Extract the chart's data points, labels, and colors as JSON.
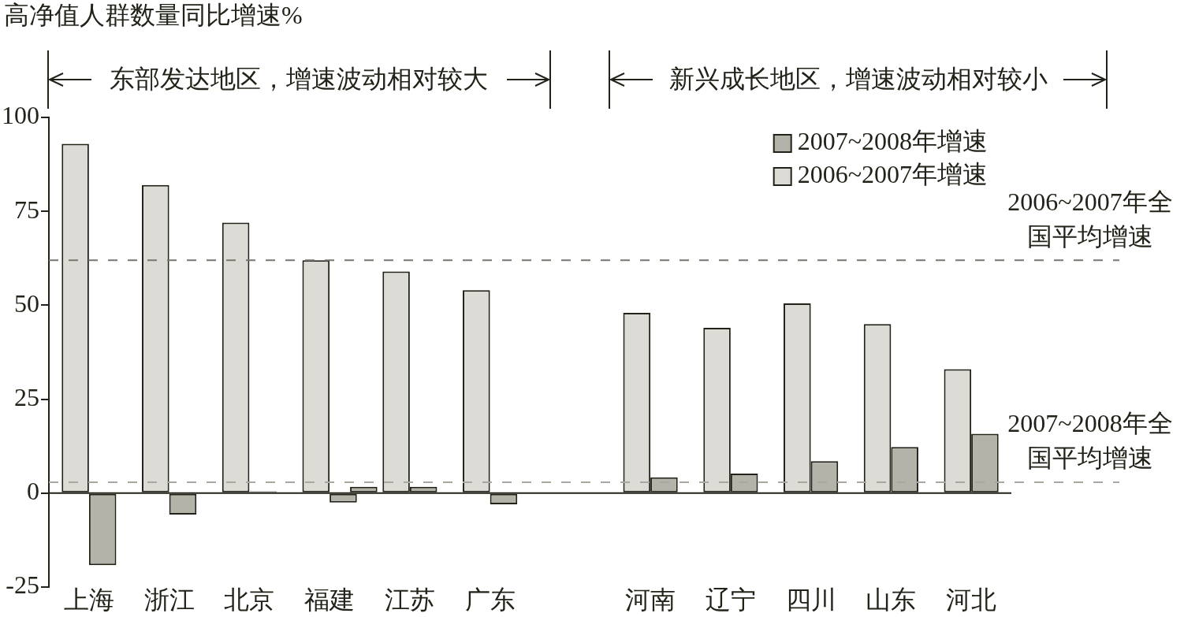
{
  "chart_data": {
    "type": "bar",
    "ylabel": "高净值人群数量同比增速%",
    "categories": [
      "上海",
      "浙江",
      "北京",
      "福建",
      "江苏",
      "广东",
      null,
      "河南",
      "辽宁",
      "四川",
      "山东",
      "河北"
    ],
    "series": [
      {
        "name": "2006~2007年增速",
        "color": "#dcdbd6",
        "values": [
          93,
          82,
          72,
          62,
          59,
          54,
          null,
          48,
          44,
          50.5,
          45,
          33
        ]
      },
      {
        "name": "2007~2008年增速",
        "color": "#b3b3a9",
        "values": [
          -19.2,
          -5.7,
          0.5,
          -2.5,
          1.7,
          -3,
          null,
          4.2,
          5.2,
          8.5,
          12.3,
          15.8
        ]
      },
      {
        "color": "#b3b3a9",
        "values": [
          null,
          null,
          null,
          1.7,
          null,
          null,
          null,
          null,
          null,
          null,
          null,
          null
        ]
      }
    ],
    "ylim": [
      -25,
      100
    ],
    "yticks": [
      -25,
      0,
      25,
      50,
      75,
      100
    ],
    "legend": "top right",
    "ref_lines": [
      {
        "axis": "y",
        "value": 62,
        "label": "2006~2007年全国平均增速",
        "color": "#77776f",
        "line_style": "dashed"
      },
      {
        "axis": "y",
        "value": 2.9,
        "label": "2007~2008年全国平均增速",
        "color": "#a8a8a0",
        "line_style": "dashed"
      }
    ],
    "annotations": [
      "东部发达地区，增速波动相对较大",
      "新兴成长地区，增速波动相对较小"
    ]
  }
}
